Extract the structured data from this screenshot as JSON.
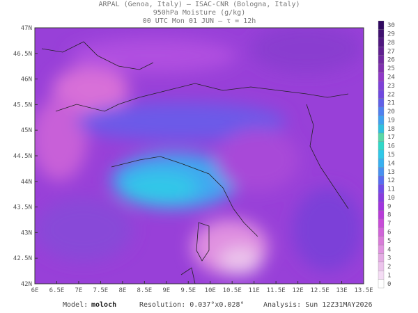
{
  "header": {
    "line1": "ARPAL (Genoa, Italy)  –  ISAC-CNR (Bologna, Italy)",
    "line2": "950hPa Moisture (g/kg)",
    "line3": "00 UTC Mon 01 JUN  –  τ = 12h"
  },
  "map": {
    "lat_labels": [
      "47N",
      "46.5N",
      "46N",
      "45.5N",
      "45N",
      "44.5N",
      "44N",
      "43.5N",
      "43N",
      "42.5N",
      "42N"
    ],
    "lon_labels": [
      "6E",
      "6.5E",
      "7E",
      "7.5E",
      "8E",
      "8.5E",
      "9E",
      "9.5E",
      "10E",
      "10.5E",
      "11E",
      "11.5E",
      "12E",
      "12.5E",
      "13E",
      "13.5E"
    ]
  },
  "colorbar": {
    "labels": [
      0,
      1,
      2,
      3,
      4,
      5,
      6,
      7,
      8,
      9,
      10,
      11,
      12,
      13,
      14,
      15,
      16,
      17,
      18,
      19,
      20,
      21,
      22,
      23,
      24,
      25,
      26,
      27,
      28,
      29,
      30
    ],
    "colors": [
      "#ffffff",
      "#f4dcf4",
      "#ecc4ec",
      "#e4ace4",
      "#e094e0",
      "#d87cd8",
      "#d064d8",
      "#c84cd8",
      "#b83cd8",
      "#a034e0",
      "#883ce0",
      "#704ce8",
      "#586cf0",
      "#4890f0",
      "#38b0f0",
      "#30c8e8",
      "#30d8c8",
      "#58d8a8",
      "#30c0e0",
      "#40a0f0",
      "#5080f0",
      "#6060e8",
      "#7048e0",
      "#8040d8",
      "#9038c8",
      "#8030b0",
      "#7028a0",
      "#602090",
      "#501880",
      "#401070",
      "#300860"
    ]
  },
  "footer": {
    "model_label": "Model:",
    "model": "moloch",
    "resolution": "Resolution: 0.037°x0.028°",
    "analysis": "Analysis: Sun 12Z31MAY2026"
  }
}
